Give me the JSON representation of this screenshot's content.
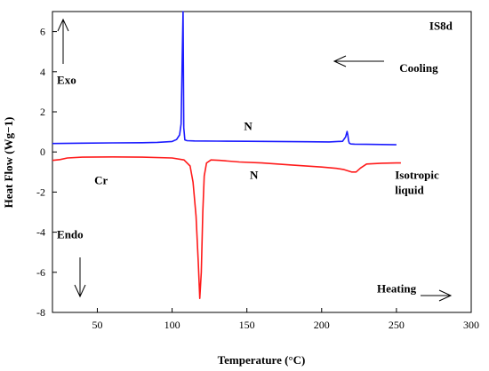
{
  "chart_data": {
    "type": "line",
    "xlabel": "Temperature (°C)",
    "ylabel": "Heat Flow (Wg−1)",
    "xlim": [
      20,
      300
    ],
    "ylim": [
      -8,
      7
    ],
    "xticks": [
      50,
      100,
      150,
      200,
      250,
      300
    ],
    "yticks": [
      -8,
      -6,
      -4,
      -2,
      0,
      2,
      4,
      6
    ],
    "grid": false,
    "series": [
      {
        "color": "#1a1aff",
        "x": [
          20,
          40,
          60,
          80,
          90,
          100,
          103,
          105,
          106,
          106.8,
          107.3,
          107.8,
          108.5,
          110,
          115,
          130,
          150,
          170,
          190,
          205,
          214,
          216,
          217,
          217.5,
          218,
          218.5,
          219.5,
          222,
          230,
          240,
          250
        ],
        "y": [
          0.42,
          0.44,
          0.45,
          0.46,
          0.48,
          0.52,
          0.62,
          0.85,
          1.4,
          4.8,
          7.0,
          1.2,
          0.6,
          0.56,
          0.55,
          0.54,
          0.53,
          0.52,
          0.51,
          0.5,
          0.53,
          0.75,
          1.02,
          0.85,
          0.55,
          0.44,
          0.4,
          0.39,
          0.38,
          0.37,
          0.36
        ]
      },
      {
        "color": "#ff1a1a",
        "x": [
          20,
          25,
          30,
          40,
          60,
          80,
          100,
          108,
          112,
          114,
          116,
          117.5,
          118.5,
          119.5,
          120.5,
          121.5,
          123,
          126,
          132,
          145,
          160,
          180,
          200,
          210,
          215,
          220,
          223,
          226,
          230,
          240,
          250,
          253
        ],
        "y": [
          -0.42,
          -0.38,
          -0.3,
          -0.26,
          -0.25,
          -0.26,
          -0.3,
          -0.4,
          -0.7,
          -1.5,
          -3.2,
          -5.5,
          -7.3,
          -6.0,
          -3.0,
          -1.2,
          -0.55,
          -0.4,
          -0.42,
          -0.5,
          -0.55,
          -0.65,
          -0.75,
          -0.82,
          -0.88,
          -1.0,
          -1.0,
          -0.8,
          -0.6,
          -0.56,
          -0.55,
          -0.55
        ]
      }
    ],
    "annotations": [
      {
        "text": "Exo",
        "x": 23,
        "y": 3.4
      },
      {
        "text": "Endo",
        "x": 23,
        "y": -4.3
      },
      {
        "text": "IS8d",
        "x": 272,
        "y": 6.1
      },
      {
        "text": "Cooling",
        "x": 252,
        "y": 4.0
      },
      {
        "text": "N",
        "x": 148,
        "y": 1.1
      },
      {
        "text": "N",
        "x": 152,
        "y": -1.35
      },
      {
        "text": "Cr",
        "x": 48,
        "y": -1.6
      },
      {
        "text": "Isotropic",
        "x": 249,
        "y": -1.35
      },
      {
        "text": "liquid",
        "x": 249,
        "y": -2.1
      },
      {
        "text": "Heating",
        "x": 237,
        "y": -7.0
      }
    ]
  }
}
